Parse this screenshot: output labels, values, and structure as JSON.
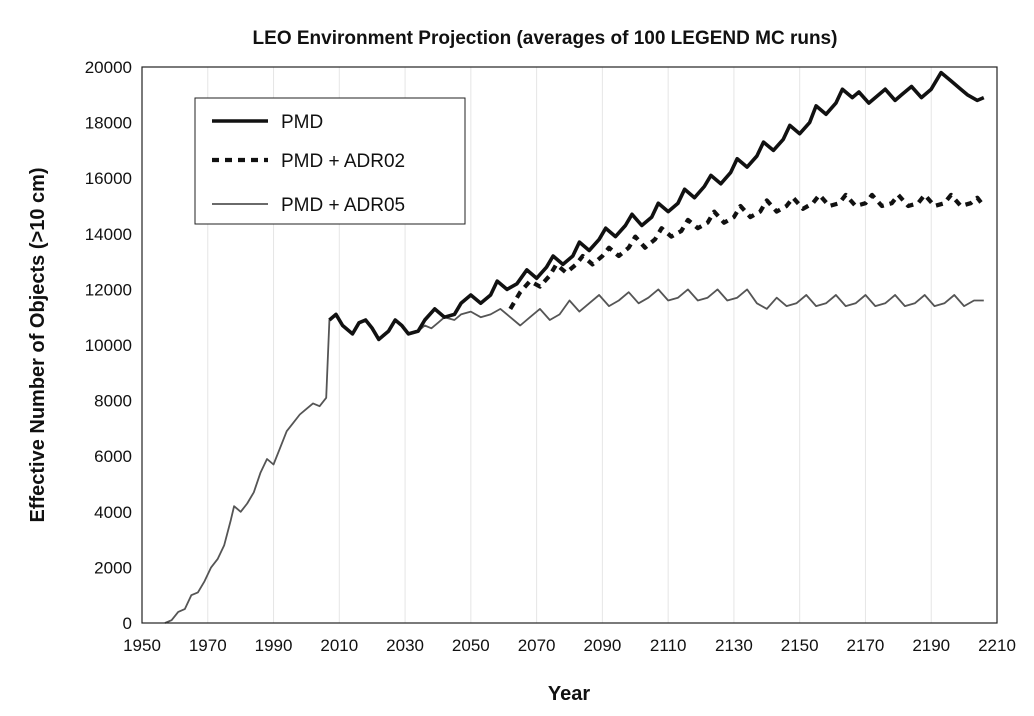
{
  "chart_data": {
    "type": "line",
    "title": "LEO Environment Projection (averages of 100 LEGEND MC runs)",
    "xlabel": "Year",
    "ylabel": "Effective Number of Objects (>10 cm)",
    "xlim": [
      1950,
      2210
    ],
    "ylim": [
      0,
      20000
    ],
    "x_ticks": [
      1950,
      1970,
      1990,
      2010,
      2030,
      2050,
      2070,
      2090,
      2110,
      2130,
      2150,
      2170,
      2190,
      2210
    ],
    "y_ticks": [
      0,
      2000,
      4000,
      6000,
      8000,
      10000,
      12000,
      14000,
      16000,
      18000,
      20000
    ],
    "grid": "vertical",
    "legend_position": "top-left",
    "series": [
      {
        "name": "PMD",
        "style": "solid-thick",
        "color": "#111111",
        "points": [
          [
            2007,
            10900
          ],
          [
            2009,
            11100
          ],
          [
            2011,
            10700
          ],
          [
            2014,
            10400
          ],
          [
            2016,
            10800
          ],
          [
            2018,
            10900
          ],
          [
            2020,
            10600
          ],
          [
            2022,
            10200
          ],
          [
            2025,
            10500
          ],
          [
            2027,
            10900
          ],
          [
            2029,
            10700
          ],
          [
            2031,
            10400
          ],
          [
            2034,
            10500
          ],
          [
            2036,
            10900
          ],
          [
            2039,
            11300
          ],
          [
            2042,
            11000
          ],
          [
            2045,
            11100
          ],
          [
            2047,
            11500
          ],
          [
            2050,
            11800
          ],
          [
            2053,
            11500
          ],
          [
            2056,
            11800
          ],
          [
            2058,
            12300
          ],
          [
            2061,
            12000
          ],
          [
            2064,
            12200
          ],
          [
            2067,
            12700
          ],
          [
            2070,
            12400
          ],
          [
            2073,
            12800
          ],
          [
            2075,
            13200
          ],
          [
            2078,
            12900
          ],
          [
            2081,
            13200
          ],
          [
            2083,
            13700
          ],
          [
            2086,
            13400
          ],
          [
            2089,
            13800
          ],
          [
            2091,
            14200
          ],
          [
            2094,
            13900
          ],
          [
            2097,
            14300
          ],
          [
            2099,
            14700
          ],
          [
            2102,
            14300
          ],
          [
            2105,
            14600
          ],
          [
            2107,
            15100
          ],
          [
            2110,
            14800
          ],
          [
            2113,
            15100
          ],
          [
            2115,
            15600
          ],
          [
            2118,
            15300
          ],
          [
            2121,
            15700
          ],
          [
            2123,
            16100
          ],
          [
            2126,
            15800
          ],
          [
            2129,
            16200
          ],
          [
            2131,
            16700
          ],
          [
            2134,
            16400
          ],
          [
            2137,
            16800
          ],
          [
            2139,
            17300
          ],
          [
            2142,
            17000
          ],
          [
            2145,
            17400
          ],
          [
            2147,
            17900
          ],
          [
            2150,
            17600
          ],
          [
            2153,
            18000
          ],
          [
            2155,
            18600
          ],
          [
            2158,
            18300
          ],
          [
            2161,
            18700
          ],
          [
            2163,
            19200
          ],
          [
            2166,
            18900
          ],
          [
            2168,
            19100
          ],
          [
            2171,
            18700
          ],
          [
            2173,
            18900
          ],
          [
            2176,
            19200
          ],
          [
            2179,
            18800
          ],
          [
            2181,
            19000
          ],
          [
            2184,
            19300
          ],
          [
            2187,
            18900
          ],
          [
            2190,
            19200
          ],
          [
            2193,
            19800
          ],
          [
            2196,
            19500
          ],
          [
            2199,
            19200
          ],
          [
            2201,
            19000
          ],
          [
            2204,
            18800
          ],
          [
            2206,
            18900
          ]
        ]
      },
      {
        "name": "PMD + ADR02",
        "style": "dashed-thick",
        "color": "#111111",
        "points": [
          [
            2062,
            11300
          ],
          [
            2065,
            11900
          ],
          [
            2068,
            12300
          ],
          [
            2071,
            12100
          ],
          [
            2074,
            12500
          ],
          [
            2076,
            12900
          ],
          [
            2079,
            12600
          ],
          [
            2082,
            12900
          ],
          [
            2084,
            13200
          ],
          [
            2087,
            12900
          ],
          [
            2090,
            13200
          ],
          [
            2092,
            13500
          ],
          [
            2095,
            13200
          ],
          [
            2098,
            13500
          ],
          [
            2100,
            13900
          ],
          [
            2103,
            13500
          ],
          [
            2106,
            13800
          ],
          [
            2108,
            14200
          ],
          [
            2111,
            13900
          ],
          [
            2114,
            14100
          ],
          [
            2116,
            14500
          ],
          [
            2119,
            14200
          ],
          [
            2122,
            14400
          ],
          [
            2124,
            14800
          ],
          [
            2127,
            14400
          ],
          [
            2130,
            14600
          ],
          [
            2132,
            15000
          ],
          [
            2135,
            14600
          ],
          [
            2138,
            14800
          ],
          [
            2140,
            15200
          ],
          [
            2143,
            14800
          ],
          [
            2146,
            15000
          ],
          [
            2148,
            15300
          ],
          [
            2151,
            14900
          ],
          [
            2154,
            15100
          ],
          [
            2156,
            15400
          ],
          [
            2159,
            15000
          ],
          [
            2162,
            15100
          ],
          [
            2164,
            15400
          ],
          [
            2167,
            15000
          ],
          [
            2170,
            15100
          ],
          [
            2172,
            15400
          ],
          [
            2175,
            15000
          ],
          [
            2178,
            15100
          ],
          [
            2180,
            15400
          ],
          [
            2183,
            15000
          ],
          [
            2186,
            15100
          ],
          [
            2188,
            15400
          ],
          [
            2191,
            15000
          ],
          [
            2194,
            15100
          ],
          [
            2196,
            15400
          ],
          [
            2199,
            15000
          ],
          [
            2202,
            15100
          ],
          [
            2204,
            15300
          ],
          [
            2206,
            15000
          ]
        ]
      },
      {
        "name": "PMD + ADR05",
        "style": "solid-thin",
        "color": "#555555",
        "points": [
          [
            1957,
            0
          ],
          [
            1959,
            100
          ],
          [
            1961,
            400
          ],
          [
            1963,
            500
          ],
          [
            1965,
            1000
          ],
          [
            1967,
            1100
          ],
          [
            1969,
            1500
          ],
          [
            1971,
            2000
          ],
          [
            1973,
            2300
          ],
          [
            1975,
            2800
          ],
          [
            1977,
            3700
          ],
          [
            1978,
            4200
          ],
          [
            1980,
            4000
          ],
          [
            1982,
            4300
          ],
          [
            1984,
            4700
          ],
          [
            1986,
            5400
          ],
          [
            1988,
            5900
          ],
          [
            1990,
            5700
          ],
          [
            1992,
            6300
          ],
          [
            1994,
            6900
          ],
          [
            1996,
            7200
          ],
          [
            1998,
            7500
          ],
          [
            2000,
            7700
          ],
          [
            2002,
            7900
          ],
          [
            2004,
            7800
          ],
          [
            2006,
            8100
          ],
          [
            2007,
            10900
          ],
          [
            2009,
            11100
          ],
          [
            2011,
            10700
          ],
          [
            2014,
            10400
          ],
          [
            2016,
            10800
          ],
          [
            2018,
            10900
          ],
          [
            2020,
            10600
          ],
          [
            2022,
            10200
          ],
          [
            2025,
            10500
          ],
          [
            2027,
            10900
          ],
          [
            2029,
            10700
          ],
          [
            2031,
            10400
          ],
          [
            2034,
            10500
          ],
          [
            2036,
            10700
          ],
          [
            2038,
            10600
          ],
          [
            2040,
            10800
          ],
          [
            2042,
            11000
          ],
          [
            2045,
            10900
          ],
          [
            2047,
            11100
          ],
          [
            2050,
            11200
          ],
          [
            2053,
            11000
          ],
          [
            2056,
            11100
          ],
          [
            2059,
            11300
          ],
          [
            2062,
            11000
          ],
          [
            2065,
            10700
          ],
          [
            2068,
            11000
          ],
          [
            2071,
            11300
          ],
          [
            2074,
            10900
          ],
          [
            2077,
            11100
          ],
          [
            2080,
            11600
          ],
          [
            2083,
            11200
          ],
          [
            2086,
            11500
          ],
          [
            2089,
            11800
          ],
          [
            2092,
            11400
          ],
          [
            2095,
            11600
          ],
          [
            2098,
            11900
          ],
          [
            2101,
            11500
          ],
          [
            2104,
            11700
          ],
          [
            2107,
            12000
          ],
          [
            2110,
            11600
          ],
          [
            2113,
            11700
          ],
          [
            2116,
            12000
          ],
          [
            2119,
            11600
          ],
          [
            2122,
            11700
          ],
          [
            2125,
            12000
          ],
          [
            2128,
            11600
          ],
          [
            2131,
            11700
          ],
          [
            2134,
            12000
          ],
          [
            2137,
            11500
          ],
          [
            2140,
            11300
          ],
          [
            2143,
            11700
          ],
          [
            2146,
            11400
          ],
          [
            2149,
            11500
          ],
          [
            2152,
            11800
          ],
          [
            2155,
            11400
          ],
          [
            2158,
            11500
          ],
          [
            2161,
            11800
          ],
          [
            2164,
            11400
          ],
          [
            2167,
            11500
          ],
          [
            2170,
            11800
          ],
          [
            2173,
            11400
          ],
          [
            2176,
            11500
          ],
          [
            2179,
            11800
          ],
          [
            2182,
            11400
          ],
          [
            2185,
            11500
          ],
          [
            2188,
            11800
          ],
          [
            2191,
            11400
          ],
          [
            2194,
            11500
          ],
          [
            2197,
            11800
          ],
          [
            2200,
            11400
          ],
          [
            2203,
            11600
          ],
          [
            2206,
            11600
          ]
        ]
      }
    ]
  }
}
